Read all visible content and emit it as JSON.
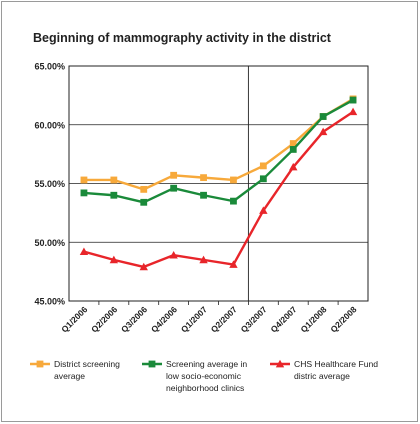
{
  "chart_data": {
    "type": "line",
    "title": "Beginning of mammography activity in the district",
    "xlabel": "",
    "ylabel": "",
    "categories": [
      "Q1/2006",
      "Q2/2006",
      "Q3/2006",
      "Q4/2006",
      "Q1/2007",
      "Q2/2007",
      "Q3/2007",
      "Q4/2007",
      "Q1/2008",
      "Q2/2008"
    ],
    "ylim": [
      45,
      65
    ],
    "yticks": [
      45,
      50,
      55,
      60,
      65
    ],
    "ytick_labels": [
      "45.00%",
      "50.00%",
      "55.00%",
      "60.00%",
      "65.00%"
    ],
    "grid": "horizontal",
    "reference_line_after": "Q2/2007",
    "legend_position": "bottom",
    "series": [
      {
        "name": "District screening average",
        "legend_lines": [
          "District screening",
          "average"
        ],
        "color": "#f7a93b",
        "marker": "square",
        "values": [
          55.3,
          55.3,
          54.5,
          55.7,
          55.5,
          55.3,
          56.5,
          58.4,
          60.7,
          62.2
        ]
      },
      {
        "name": "Screening average in low socio-economic neighborhood clinics",
        "legend_lines": [
          "Screening average in",
          "low socio-economic",
          "neighborhood clinics"
        ],
        "color": "#1a8a3a",
        "marker": "square",
        "values": [
          54.2,
          54.0,
          53.4,
          54.6,
          54.0,
          53.5,
          55.4,
          57.9,
          60.7,
          62.1
        ]
      },
      {
        "name": "CHS Healthcare Fund distric average",
        "legend_lines": [
          "CHS Healthcare Fund",
          "distric average"
        ],
        "color": "#e8252a",
        "marker": "triangle",
        "values": [
          49.2,
          48.5,
          47.9,
          48.9,
          48.5,
          48.1,
          52.7,
          56.4,
          59.4,
          61.1
        ]
      }
    ]
  }
}
